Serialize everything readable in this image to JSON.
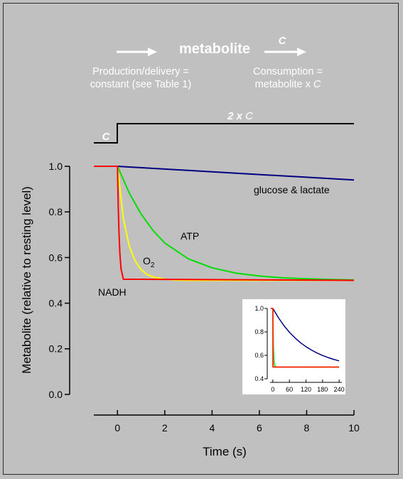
{
  "header": {
    "metabolite": "metabolite",
    "rate_constant": "C",
    "production_line1": "Production/delivery =",
    "production_line2": "constant (see Table 1)",
    "consumption_line1": "Consumption =",
    "consumption_line2_prefix": "metabolite x ",
    "consumption_line2_var": "C"
  },
  "step": {
    "low_label": "C",
    "high_label_prefix": "2 x ",
    "high_label_var": "C"
  },
  "colors": {
    "background": "#c0c0c0",
    "nadh": "#ff0000",
    "o2": "#ffff00",
    "atp": "#00dd00",
    "glucose_lactate": "#000080",
    "header_text": "#ffffff"
  },
  "chart_data": [
    {
      "type": "line",
      "title": "",
      "xlabel": "Time (s)",
      "ylabel": "Metabolite (relative to resting level)",
      "xlim": [
        -1,
        10
      ],
      "ylim": [
        0,
        1
      ],
      "xticks": [
        0,
        2,
        4,
        6,
        8,
        10
      ],
      "yticks": [
        "0.0",
        "0.2",
        "0.4",
        "0.6",
        "0.8",
        "1.0"
      ],
      "grid": false,
      "annotations": {
        "glucose_lactate": "glucose & lactate",
        "atp": "ATP",
        "o2_base": "O",
        "o2_sub": "2",
        "nadh": "NADH"
      },
      "series": [
        {
          "name": "glucose & lactate",
          "color": "#000080",
          "x": [
            0,
            2,
            4,
            6,
            8,
            10
          ],
          "y": [
            1.0,
            0.988,
            0.976,
            0.964,
            0.952,
            0.94
          ]
        },
        {
          "name": "ATP",
          "color": "#00dd00",
          "x": [
            0,
            0.5,
            1,
            1.5,
            2,
            3,
            4,
            5,
            6,
            7,
            8,
            9,
            10
          ],
          "y": [
            1.0,
            0.883,
            0.791,
            0.719,
            0.664,
            0.594,
            0.555,
            0.532,
            0.519,
            0.511,
            0.507,
            0.504,
            0.502
          ]
        },
        {
          "name": "O2",
          "color": "#ffff00",
          "x": [
            0,
            0.25,
            0.5,
            0.75,
            1,
            1.25,
            1.5,
            2,
            2.5,
            3,
            10
          ],
          "y": [
            1.0,
            0.77,
            0.65,
            0.585,
            0.547,
            0.526,
            0.515,
            0.505,
            0.501,
            0.5,
            0.5
          ]
        },
        {
          "name": "NADH",
          "color": "#ff0000",
          "x": [
            -1,
            0,
            0.03,
            0.06,
            0.1,
            0.15,
            0.25,
            10
          ],
          "y": [
            1.0,
            1.0,
            0.83,
            0.72,
            0.62,
            0.55,
            0.505,
            0.5
          ]
        }
      ]
    },
    {
      "type": "line",
      "title": "",
      "xlim": [
        -10,
        250
      ],
      "ylim": [
        0.4,
        1
      ],
      "xticks": [
        0,
        60,
        120,
        180,
        240
      ],
      "yticks": [
        "0.4",
        "0.6",
        "0.8",
        "1.0"
      ],
      "grid": false,
      "series": [
        {
          "name": "glucose & lactate",
          "color": "#000080",
          "x": [
            0,
            20,
            40,
            60,
            80,
            100,
            120,
            140,
            160,
            180,
            200,
            220,
            240
          ],
          "y": [
            1.0,
            0.921,
            0.854,
            0.797,
            0.749,
            0.708,
            0.674,
            0.645,
            0.62,
            0.599,
            0.581,
            0.566,
            0.553
          ]
        },
        {
          "name": "ATP",
          "color": "#00dd00",
          "x": [
            0,
            2,
            5,
            8,
            12,
            240
          ],
          "y": [
            1.0,
            0.664,
            0.532,
            0.507,
            0.501,
            0.5
          ]
        },
        {
          "name": "O2",
          "color": "#ffff00",
          "x": [
            0,
            1,
            2,
            3,
            240
          ],
          "y": [
            1.0,
            0.547,
            0.505,
            0.5,
            0.5
          ]
        },
        {
          "name": "NADH",
          "color": "#ff0000",
          "x": [
            -8,
            0,
            0.3,
            240
          ],
          "y": [
            1.0,
            1.0,
            0.5,
            0.5
          ]
        }
      ]
    }
  ]
}
